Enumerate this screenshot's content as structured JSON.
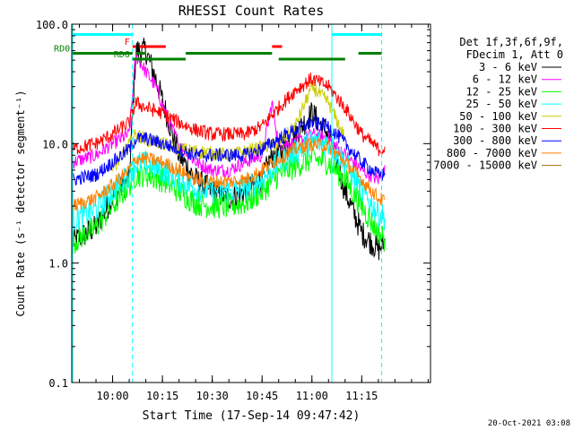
{
  "chart_data": {
    "type": "line",
    "title": "RHESSI Count Rates",
    "xlabel": "Start Time (17-Sep-14 09:47:42)",
    "ylabel": "Count Rate (s⁻¹ detector segment⁻¹)",
    "ylog": true,
    "ylim": [
      0.1,
      100.0
    ],
    "xlim_minutes_since_start": [
      0,
      108
    ],
    "x_ticks": [
      "10:00",
      "10:15",
      "10:30",
      "10:45",
      "11:00",
      "11:15"
    ],
    "y_ticks": [
      "0.1",
      "1.0",
      "10.0",
      "100.0"
    ],
    "legend_header": [
      "Det 1f,3f,6f,9f,",
      "FDecim 1, Att 0"
    ],
    "legend_position": "right",
    "series": [
      {
        "name": "3 - 6 keV",
        "color": "#000000",
        "x": [
          "09:48",
          "09:55",
          "10:00",
          "10:05",
          "10:07",
          "10:10",
          "10:13",
          "10:17",
          "10:20",
          "10:25",
          "10:30",
          "10:35",
          "10:40",
          "10:45",
          "10:48",
          "10:50",
          "10:55",
          "11:00",
          "11:05",
          "11:10",
          "11:15",
          "11:20",
          "11:22"
        ],
        "y": [
          1.5,
          2.0,
          3.5,
          5.0,
          60,
          60,
          35,
          15,
          8,
          5,
          4,
          3.5,
          4,
          5,
          8,
          8,
          12,
          18,
          12,
          4,
          1.8,
          1.3,
          1.5
        ]
      },
      {
        "name": "6 - 12 keV",
        "color": "#ff00ff",
        "x": [
          "09:48",
          "09:55",
          "10:00",
          "10:05",
          "10:07",
          "10:10",
          "10:13",
          "10:17",
          "10:20",
          "10:25",
          "10:30",
          "10:35",
          "10:40",
          "10:45",
          "10:48",
          "10:50",
          "10:55",
          "11:00",
          "11:05",
          "11:10",
          "11:15",
          "11:20",
          "11:22"
        ],
        "y": [
          7,
          8,
          10,
          12,
          55,
          40,
          30,
          15,
          10,
          7,
          6,
          6,
          7,
          8,
          22,
          10,
          10,
          12,
          11,
          8,
          6,
          5,
          6
        ]
      },
      {
        "name": "12 - 25 keV",
        "color": "#00ff00",
        "x": [
          "09:48",
          "09:55",
          "10:00",
          "10:05",
          "10:07",
          "10:10",
          "10:15",
          "10:20",
          "10:25",
          "10:30",
          "10:35",
          "10:40",
          "10:45",
          "10:50",
          "10:55",
          "11:00",
          "11:05",
          "11:10",
          "11:15",
          "11:20",
          "11:22"
        ],
        "y": [
          1.5,
          2.0,
          3.0,
          4.5,
          5.5,
          5.5,
          5.0,
          4.0,
          3.2,
          3.0,
          3.0,
          3.2,
          4.0,
          5.5,
          6.5,
          7.5,
          7.0,
          5.0,
          3.0,
          1.8,
          1.6
        ]
      },
      {
        "name": "25 - 50 keV",
        "color": "#00ffff",
        "x": [
          "09:48",
          "09:55",
          "10:00",
          "10:05",
          "10:07",
          "10:10",
          "10:15",
          "10:20",
          "10:25",
          "10:30",
          "10:35",
          "10:40",
          "10:45",
          "10:50",
          "10:55",
          "11:00",
          "11:05",
          "11:10",
          "11:15",
          "11:20",
          "11:22"
        ],
        "y": [
          2.3,
          2.8,
          4.0,
          5.5,
          6.8,
          6.8,
          6.0,
          5.0,
          4.2,
          4.0,
          4.0,
          4.2,
          5.0,
          6.8,
          8.5,
          10.5,
          10,
          7.0,
          4.0,
          2.6,
          2.4
        ]
      },
      {
        "name": "50 - 100 keV",
        "color": "#cccc00",
        "x": [
          "10:00",
          "10:07",
          "10:10",
          "10:20",
          "10:35",
          "10:50",
          "10:55",
          "11:00",
          "11:05",
          "11:10"
        ],
        "y": [
          6,
          12,
          11,
          9,
          8,
          10,
          14,
          30,
          22,
          11
        ]
      },
      {
        "name": "100 - 300 keV",
        "color": "#ff0000",
        "x": [
          "09:48",
          "09:55",
          "10:00",
          "10:05",
          "10:07",
          "10:10",
          "10:15",
          "10:20",
          "10:25",
          "10:30",
          "10:35",
          "10:40",
          "10:45",
          "10:50",
          "10:55",
          "11:00",
          "11:05",
          "11:10",
          "11:15",
          "11:20",
          "11:22"
        ],
        "y": [
          9,
          10,
          12,
          15,
          22,
          20,
          18,
          15,
          13,
          12,
          12,
          12,
          14,
          20,
          28,
          35,
          30,
          20,
          12,
          9,
          9
        ]
      },
      {
        "name": "300 - 800 keV",
        "color": "#0000ff",
        "x": [
          "09:48",
          "09:55",
          "10:00",
          "10:05",
          "10:07",
          "10:10",
          "10:15",
          "10:20",
          "10:25",
          "10:30",
          "10:35",
          "10:40",
          "10:45",
          "10:50",
          "10:55",
          "11:00",
          "11:05",
          "11:10",
          "11:15",
          "11:20",
          "11:22"
        ],
        "y": [
          5,
          5.5,
          7,
          9,
          11,
          11,
          10,
          9,
          8,
          8,
          8,
          8,
          9,
          11,
          13,
          15,
          14,
          10,
          7,
          5.5,
          5.5
        ]
      },
      {
        "name": "800 - 7000 keV",
        "color": "#ff8000",
        "x": [
          "09:48",
          "09:55",
          "10:00",
          "10:05",
          "10:07",
          "10:10",
          "10:15",
          "10:20",
          "10:25",
          "10:30",
          "10:35",
          "10:40",
          "10:45",
          "10:50",
          "10:55",
          "11:00",
          "11:05",
          "11:10",
          "11:15",
          "11:20",
          "11:22"
        ],
        "y": [
          3,
          3.5,
          4.5,
          6,
          7.5,
          7.5,
          7,
          6,
          5,
          4.8,
          4.8,
          5,
          6,
          7.5,
          9,
          10,
          9.5,
          7,
          5,
          3.5,
          3.3
        ]
      },
      {
        "name": "7000 - 15000 keV",
        "color": "#a07000",
        "x": [],
        "y": []
      }
    ],
    "annotations": {
      "vertical_lines": [
        {
          "time": "09:48",
          "color": "#00ffff",
          "style": "solid"
        },
        {
          "time": "10:06",
          "color": "#00ffff",
          "style": "dashed"
        },
        {
          "time": "11:06",
          "color": "#00ffff",
          "style": "solid"
        },
        {
          "time": "11:21",
          "color": "#00ffff",
          "style": "dashed"
        }
      ],
      "state_bars": [
        {
          "label": "",
          "color": "#00ffff",
          "level": 82,
          "segments": [
            [
              "09:48",
              "10:06"
            ],
            [
              "11:06",
              "11:21"
            ]
          ]
        },
        {
          "label": "F",
          "color": "#ff0000",
          "level": 65,
          "segments": [
            [
              "10:06",
              "10:07"
            ],
            [
              "10:08",
              "10:16"
            ],
            [
              "10:48",
              "10:51"
            ]
          ]
        },
        {
          "label": "RD0",
          "color": "#008000",
          "level": 57,
          "segments": [
            [
              "09:48",
              "10:06"
            ],
            [
              "10:07",
              "10:10"
            ],
            [
              "10:22",
              "10:48"
            ],
            [
              "11:14",
              "11:21"
            ]
          ]
        },
        {
          "label": "RD6",
          "color": "#008000",
          "level": 51,
          "segments": [
            [
              "10:06",
              "10:22"
            ],
            [
              "10:50",
              "11:10"
            ]
          ]
        }
      ]
    }
  },
  "timestamp": "20-Oct-2021 03:08"
}
